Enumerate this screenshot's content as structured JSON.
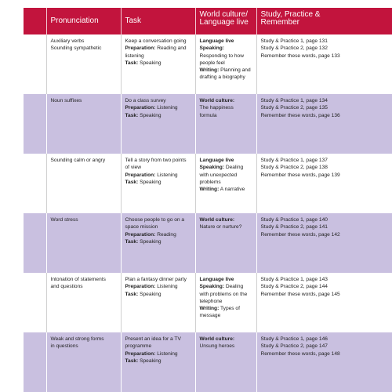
{
  "headers": {
    "col1": "Pronunciation",
    "col2": "Task",
    "col3_line1": "World culture/",
    "col3_line2": "Language live",
    "col4_line1": "Study, Practice &",
    "col4_line2": "Remember"
  },
  "rows": [
    {
      "pron": [
        "Auxiliary verbs",
        "Sounding sympathetic"
      ],
      "task_main": "Keep a conversation going",
      "prep_label": "Preparation:",
      "prep_text": "Reading and listening",
      "task_label": "Task:",
      "task_text": "Speaking",
      "wc_head": "Language live",
      "wc_l1_label": "Speaking:",
      "wc_l1_text": "Responding to how people feel",
      "wc_l2_label": "Writing:",
      "wc_l2_text": "Planning and drafting a biography",
      "spr": [
        "Study & Practice 1, page 131",
        "Study & Practice 2, page 132",
        "Remember these words, page 133"
      ]
    },
    {
      "pron": [
        "Noun suffixes"
      ],
      "task_main": "Do a class survey",
      "prep_label": "Preparation:",
      "prep_text": "Listening",
      "task_label": "Task:",
      "task_text": "Speaking",
      "wc_head": "World culture:",
      "wc_text": "The happiness formula",
      "spr": [
        "Study & Practice 1, page 134",
        "Study & Practice 2, page 135",
        "Remember these words, page 136"
      ]
    },
    {
      "pron": [
        "Sounding calm or angry"
      ],
      "task_main": "Tell a story from two points of view",
      "prep_label": "Preparation:",
      "prep_text": "Listening",
      "task_label": "Task:",
      "task_text": "Speaking",
      "wc_head": "Language live",
      "wc_l1_label": "Speaking:",
      "wc_l1_text": "Dealing with unexpected problems",
      "wc_l2_label": "Writing:",
      "wc_l2_text": "A narrative",
      "spr": [
        "Study & Practice 1, page 137",
        "Study & Practice 2, page 138",
        "Remember these words, page 139"
      ]
    },
    {
      "pron": [
        "Word stress"
      ],
      "task_main": "Choose people to go on a space mission",
      "prep_label": "Preparation:",
      "prep_text": "Reading",
      "task_label": "Task:",
      "task_text": "Speaking",
      "wc_head": "World culture:",
      "wc_text": "Nature or nurture?",
      "spr": [
        "Study & Practice 1, page 140",
        "Study & Practice 2, page 141",
        "Remember these words, page 142"
      ]
    },
    {
      "pron": [
        "Intonation of statements",
        "and questions"
      ],
      "task_main": "Plan a fantasy dinner party",
      "prep_label": "Preparation:",
      "prep_text": "Listening",
      "task_label": "Task:",
      "task_text": "Speaking",
      "wc_head": "Language live",
      "wc_l1_label": "Speaking:",
      "wc_l1_text": "Dealing with problems on the telephone",
      "wc_l2_label": "Writing:",
      "wc_l2_text": "Types of message",
      "spr": [
        "Study & Practice 1, page 143",
        "Study & Practice 2, page 144",
        "Remember these words, page 145"
      ]
    },
    {
      "pron": [
        "Weak and strong forms",
        "in questions"
      ],
      "task_main": "Present an idea for a TV programme",
      "prep_label": "Preparation:",
      "prep_text": "Listening",
      "task_label": "Task:",
      "task_text": "Speaking",
      "wc_head": "World culture:",
      "wc_text": "Unsung heroes",
      "spr": [
        "Study & Practice 1, page 146",
        "Study & Practice 2, page 147",
        "Remember these words, page 148"
      ]
    }
  ],
  "colors": {
    "header_bg": "#c2143d",
    "shaded_row_bg": "#c9c0e0"
  }
}
